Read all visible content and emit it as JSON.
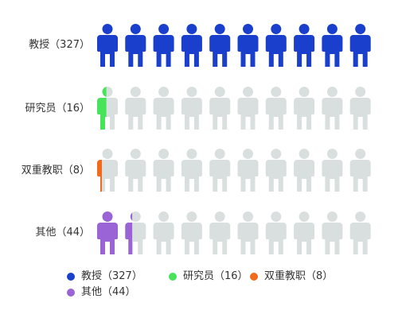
{
  "chart_data": {
    "type": "pictogram",
    "icons_per_row": 10,
    "icon": "person-icon",
    "empty_color": "#d9dfde",
    "categories": [
      {
        "label": "教授（327）",
        "name": "教授",
        "value": 327,
        "filled_icons": 10.0,
        "color": "#1a3fcc"
      },
      {
        "label": "研究员（16）",
        "name": "研究员",
        "value": 16,
        "filled_icons": 0.45,
        "color": "#47e35a"
      },
      {
        "label": "双重教职（8）",
        "name": "双重教职",
        "value": 8,
        "filled_icons": 0.25,
        "color": "#f06b1c"
      },
      {
        "label": "其他（44）",
        "name": "其他",
        "value": 44,
        "filled_icons": 1.35,
        "color": "#9a63d6"
      }
    ],
    "legend": [
      {
        "label": "教授（327）",
        "color": "#1a3fcc"
      },
      {
        "label": "研究员（16）",
        "color": "#47e35a"
      },
      {
        "label": "双重教职（8）",
        "color": "#f06b1c"
      },
      {
        "label": "其他（44）",
        "color": "#9a63d6"
      }
    ],
    "legend_position": "bottom"
  }
}
